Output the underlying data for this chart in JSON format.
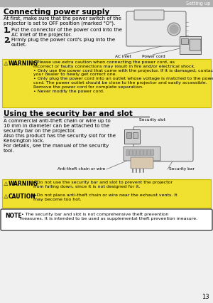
{
  "page_bg": "#f0f0f0",
  "header_bg": "#b0b0b0",
  "header_text": "Setting up",
  "header_text_color": "#ffffff",
  "title1": "Connecting power supply",
  "title2": "Using the security bar and slot",
  "section1_intro": "At first, make sure that the power switch of the\nprojector is set to OFF position (marked \"O\").",
  "section1_step1": "Put the connector of the power cord into the\nAC inlet of the projector.",
  "section1_step2": "Firmly plug the power cord's plug into the\noutlet.",
  "ac_inlet_label": "AC inlet",
  "power_cord_label": "Power cord",
  "warning1_text": "►Please use extra caution when connecting the power cord, as\nincorrect or faulty connections may result in fire and/or electrical shock.\n• Only use the power cord that came with the projector. If it is damaged, contact\nyour dealer to newly get correct one.\n• Only plug the power cord into an outlet whose voltage is matched to the power\ncord. The power outlet should be close to the projector and easily accessible.\nRemove the power cord for complete separation.\n• Never modify the power cord.",
  "warning_bg": "#f0e030",
  "warning_border": "#c8b800",
  "section2_text": "A commercial anti-theft chain or wire up to\n10 mm in diameter can be attached to the\nsecurity bar on the projector.\nAlso this product has the security slot for the\nKensington lock.\nFor details, see the manual of the security\ntool.",
  "security_slot_label": "Security slot",
  "anti_theft_label": "Anti-theft chain or wire",
  "security_bar_label": "Security bar",
  "warning2_text": "►Do not use the security bar and slot to prevent the projector\nfrom falling down, since it is not designed for it.",
  "caution_text": "►Do not place anti-theft chain or wire near the exhaust vents. It\nmay become too hot.",
  "note_text": " • The security bar and slot is not comprehensive theft prevention\nmeasures. It is intended to be used as supplemental theft prevention measure.",
  "note_border": "#444444",
  "note_bg": "#ffffff",
  "page_number": "13",
  "font_color": "#000000"
}
